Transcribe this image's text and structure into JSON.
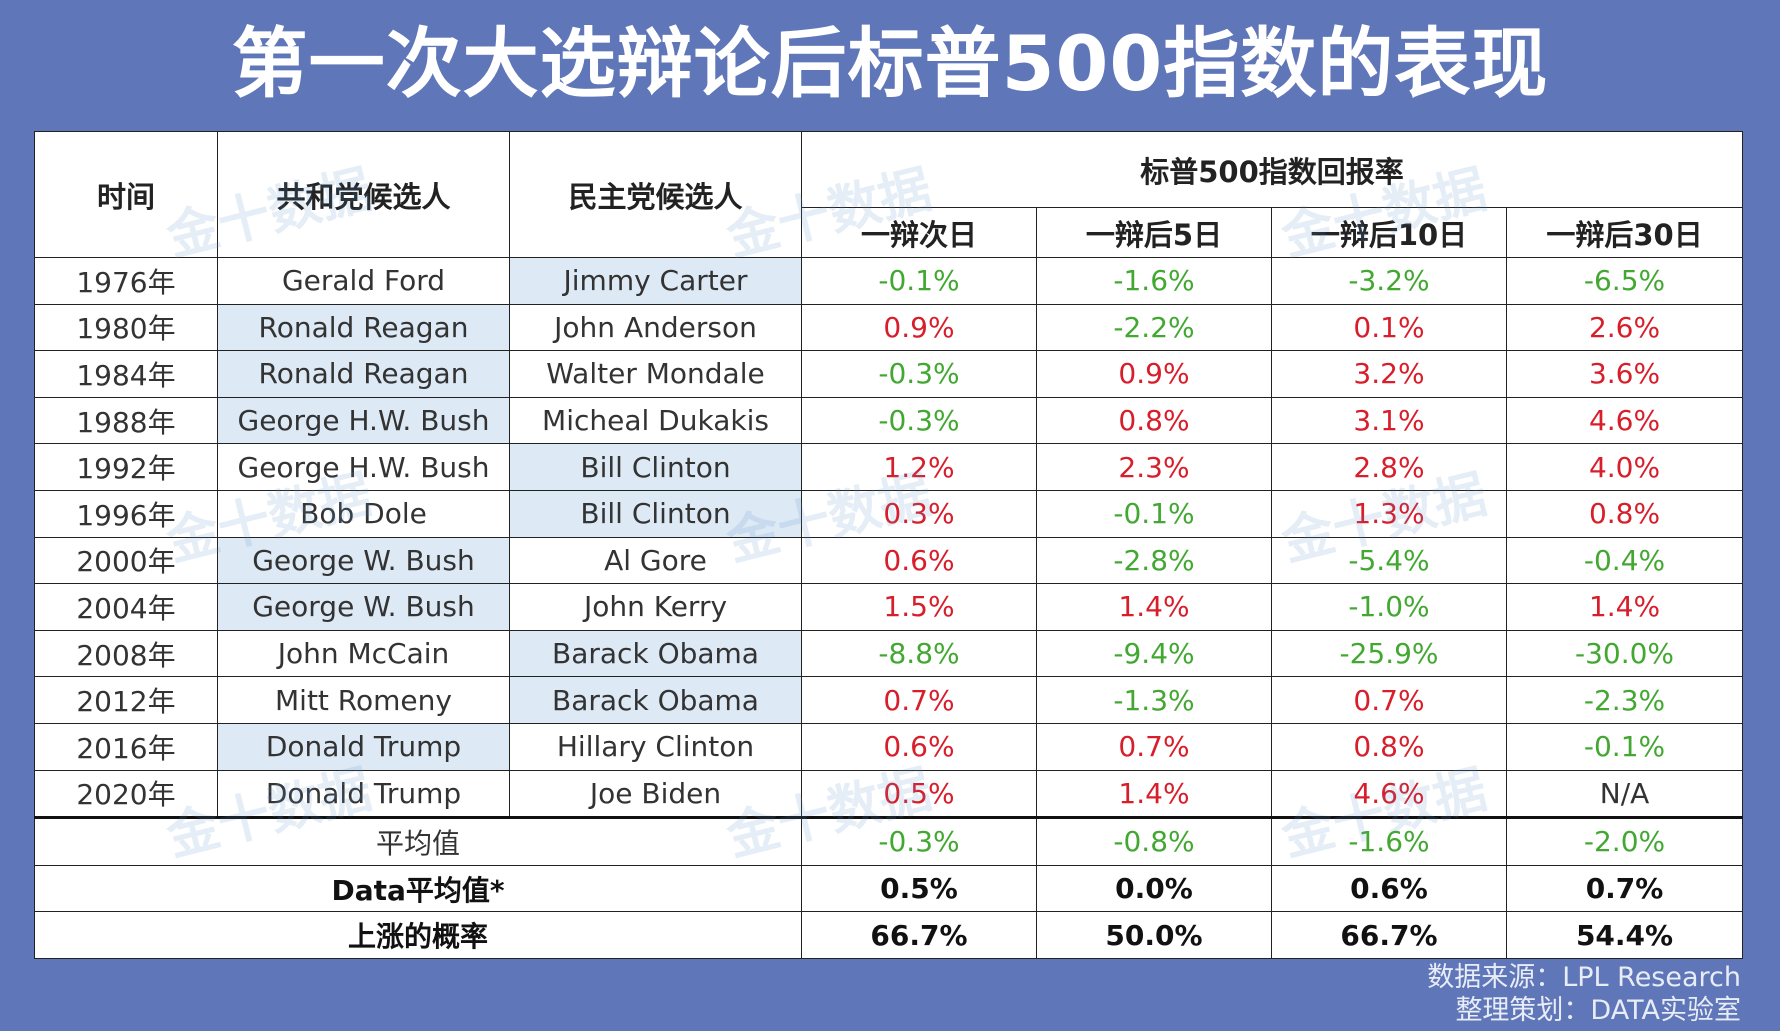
{
  "title": "第一次大选辩论后标普500指数的表现",
  "watermark": "金十数据",
  "table": {
    "headers": {
      "time": "时间",
      "republican": "共和党候选人",
      "democrat": "民主党候选人",
      "returns": "标普500指数回报率",
      "day1": "一辩次日",
      "day5": "一辩后5日",
      "day10": "一辩后10日",
      "day30": "一辩后30日"
    },
    "rows": [
      {
        "year": "1976年",
        "republican": "Gerald Ford",
        "democrat": "Jimmy Carter",
        "winner": "democrat",
        "d1": "-0.1%",
        "d5": "-1.6%",
        "d10": "-3.2%",
        "d30": "-6.5%"
      },
      {
        "year": "1980年",
        "republican": "Ronald Reagan",
        "democrat": "John Anderson",
        "winner": "republican",
        "d1": "0.9%",
        "d5": "-2.2%",
        "d10": "0.1%",
        "d30": "2.6%"
      },
      {
        "year": "1984年",
        "republican": "Ronald Reagan",
        "democrat": "Walter Mondale",
        "winner": "republican",
        "d1": "-0.3%",
        "d5": "0.9%",
        "d10": "3.2%",
        "d30": "3.6%"
      },
      {
        "year": "1988年",
        "republican": "George H.W. Bush",
        "democrat": "Micheal Dukakis",
        "winner": "republican",
        "d1": "-0.3%",
        "d5": "0.8%",
        "d10": "3.1%",
        "d30": "4.6%"
      },
      {
        "year": "1992年",
        "republican": "George H.W. Bush",
        "democrat": "Bill Clinton",
        "winner": "democrat",
        "d1": "1.2%",
        "d5": "2.3%",
        "d10": "2.8%",
        "d30": "4.0%"
      },
      {
        "year": "1996年",
        "republican": "Bob Dole",
        "democrat": "Bill Clinton",
        "winner": "democrat",
        "d1": "0.3%",
        "d5": "-0.1%",
        "d10": "1.3%",
        "d30": "0.8%"
      },
      {
        "year": "2000年",
        "republican": "George W. Bush",
        "democrat": "Al Gore",
        "winner": "republican",
        "d1": "0.6%",
        "d5": "-2.8%",
        "d10": "-5.4%",
        "d30": "-0.4%"
      },
      {
        "year": "2004年",
        "republican": "George W. Bush",
        "democrat": "John Kerry",
        "winner": "republican",
        "d1": "1.5%",
        "d5": "1.4%",
        "d10": "-1.0%",
        "d30": "1.4%"
      },
      {
        "year": "2008年",
        "republican": "John McCain",
        "democrat": "Barack Obama",
        "winner": "democrat",
        "d1": "-8.8%",
        "d5": "-9.4%",
        "d10": "-25.9%",
        "d30": "-30.0%"
      },
      {
        "year": "2012年",
        "republican": "Mitt Romeny",
        "democrat": "Barack Obama",
        "winner": "democrat",
        "d1": "0.7%",
        "d5": "-1.3%",
        "d10": "0.7%",
        "d30": "-2.3%"
      },
      {
        "year": "2016年",
        "republican": "Donald Trump",
        "democrat": "Hillary Clinton",
        "winner": "republican",
        "d1": "0.6%",
        "d5": "0.7%",
        "d10": "0.8%",
        "d30": "-0.1%"
      },
      {
        "year": "2020年",
        "republican": "Donald Trump",
        "democrat": "Joe Biden",
        "winner": "none",
        "d1": "0.5%",
        "d5": "1.4%",
        "d10": "4.6%",
        "d30": "N/A"
      }
    ],
    "summary": [
      {
        "label": "平均值",
        "d1": "-0.3%",
        "d5": "-0.8%",
        "d10": "-1.6%",
        "d30": "-2.0%",
        "bold": false
      },
      {
        "label": "Data平均值*",
        "d1": "0.5%",
        "d5": "0.0%",
        "d10": "0.6%",
        "d30": "0.7%",
        "bold": true
      },
      {
        "label": "上涨的概率",
        "d1": "66.7%",
        "d5": "50.0%",
        "d10": "66.7%",
        "d30": "54.4%",
        "bold": true
      }
    ]
  },
  "footer": {
    "source": "数据来源：LPL Research",
    "editor": "整理策划：DATA实验室"
  },
  "colors": {
    "background": "#5f76b8",
    "positive": "#d81e2a",
    "negative": "#43a832",
    "winner_highlight": "#dde9f5"
  }
}
